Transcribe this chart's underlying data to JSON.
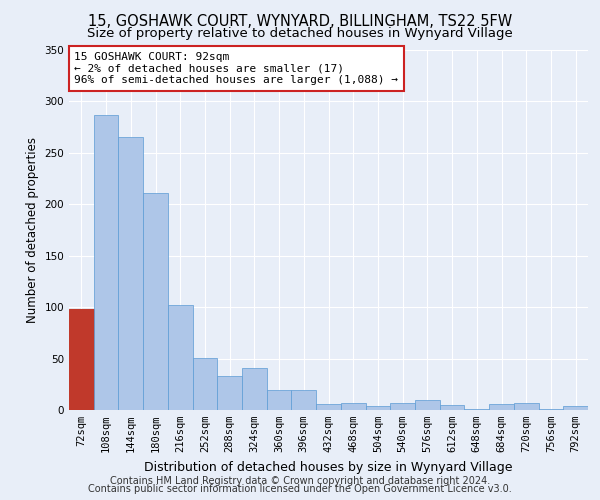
{
  "title1": "15, GOSHAWK COURT, WYNYARD, BILLINGHAM, TS22 5FW",
  "title2": "Size of property relative to detached houses in Wynyard Village",
  "xlabel": "Distribution of detached houses by size in Wynyard Village",
  "ylabel": "Number of detached properties",
  "footer1": "Contains HM Land Registry data © Crown copyright and database right 2024.",
  "footer2": "Contains public sector information licensed under the Open Government Licence v3.0.",
  "annotation_line1": "15 GOSHAWK COURT: 92sqm",
  "annotation_line2": "← 2% of detached houses are smaller (17)",
  "annotation_line3": "96% of semi-detached houses are larger (1,088) →",
  "bar_values": [
    98,
    287,
    265,
    211,
    102,
    51,
    33,
    41,
    19,
    19,
    6,
    7,
    4,
    7,
    10,
    5,
    1,
    6,
    7,
    1,
    4
  ],
  "bar_left_edges": [
    72,
    108,
    144,
    180,
    216,
    252,
    288,
    324,
    360,
    396,
    432,
    468,
    504,
    540,
    576,
    612,
    648,
    684,
    720,
    756,
    792
  ],
  "bin_width": 36,
  "highlight_bar_index": 0,
  "highlight_bar_color": "#c0392b",
  "bar_color": "#aec6e8",
  "bar_edge_color": "#5b9bd5",
  "bar_highlight_edge_color": "#c0392b",
  "background_color": "#e8eef8",
  "plot_bg_color": "#e8eef8",
  "grid_color": "#ffffff",
  "ylim": [
    0,
    350
  ],
  "yticks": [
    0,
    50,
    100,
    150,
    200,
    250,
    300,
    350
  ],
  "xtick_labels": [
    "72sqm",
    "108sqm",
    "144sqm",
    "180sqm",
    "216sqm",
    "252sqm",
    "288sqm",
    "324sqm",
    "360sqm",
    "396sqm",
    "432sqm",
    "468sqm",
    "504sqm",
    "540sqm",
    "576sqm",
    "612sqm",
    "648sqm",
    "684sqm",
    "720sqm",
    "756sqm",
    "792sqm"
  ],
  "title1_fontsize": 10.5,
  "title2_fontsize": 9.5,
  "xlabel_fontsize": 9,
  "ylabel_fontsize": 8.5,
  "tick_fontsize": 7.5,
  "annotation_fontsize": 8,
  "footer_fontsize": 7
}
